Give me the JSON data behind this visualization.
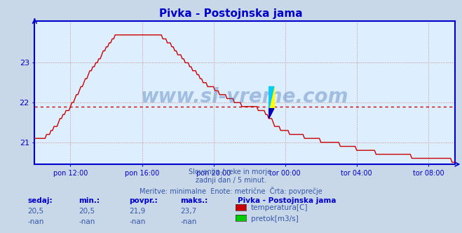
{
  "title": "Pivka - Postojnska jama",
  "background_color": "#c8d8e8",
  "plot_bg_color": "#ddeeff",
  "grid_color_h": "#cc8888",
  "grid_color_v": "#cc8888",
  "line_color": "#cc0000",
  "dashed_line_y": 21.9,
  "dashed_line_color": "#cc0000",
  "ylim": [
    20.45,
    24.05
  ],
  "yticks": [
    21,
    22,
    23
  ],
  "tick_labels_x": [
    "pon 12:00",
    "pon 16:00",
    "pon 20:00",
    "tor 00:00",
    "tor 04:00",
    "tor 08:00"
  ],
  "tick_pos_x": [
    2,
    6,
    10,
    14,
    18,
    22
  ],
  "xlim": [
    0,
    23.5
  ],
  "axis_color": "#0000cc",
  "tick_color": "#3355aa",
  "text_color": "#3355aa",
  "subtitle_lines": [
    "Slovenija / reke in morje.",
    "zadnji dan / 5 minut.",
    "Meritve: minimalne  Enote: metrične  Črta: povprečje"
  ],
  "table_headers": [
    "sedaj:",
    "min.:",
    "povpr.:",
    "maks.:"
  ],
  "table_row1": [
    "20,5",
    "20,5",
    "21,9",
    "23,7"
  ],
  "table_row2": [
    "-nan",
    "-nan",
    "-nan",
    "-nan"
  ],
  "legend_title": "Pivka - Postojnska jama",
  "legend_items": [
    {
      "label": "temperatura[C]",
      "color": "#cc0000"
    },
    {
      "label": "pretok[m3/s]",
      "color": "#00cc00"
    }
  ],
  "watermark": "www.si-vreme.com",
  "watermark_color": "#3366aa",
  "watermark_alpha": 0.35,
  "marker_x": 13.1,
  "marker_y": 21.85,
  "title_color": "#0000cc",
  "title_fontsize": 11
}
